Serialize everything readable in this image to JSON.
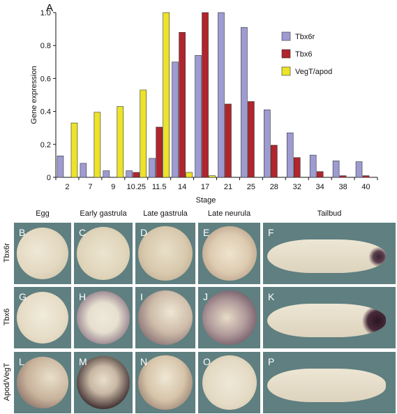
{
  "figure": {
    "panel_a_letter": "A",
    "columns": [
      "Egg",
      "Early gastrula",
      "Late gastrula",
      "Late neurula",
      "Tailbud"
    ],
    "rows": [
      {
        "label": "Tbx6r",
        "letters": [
          "B",
          "C",
          "D",
          "E",
          "F"
        ]
      },
      {
        "label": "Tbx6",
        "letters": [
          "G",
          "H",
          "I",
          "J",
          "K"
        ]
      },
      {
        "label": "Apod/VegT",
        "letters": [
          "L",
          "M",
          "N",
          "O",
          "P"
        ]
      }
    ],
    "colors": {
      "background": "#5f7f80",
      "embryo_light": "#e6ddc8"
    }
  },
  "chart_data": {
    "type": "bar",
    "xlabel": "Stage",
    "ylabel": "Gene expression",
    "ylim": [
      0,
      1.0
    ],
    "yticks": [
      "0",
      "0.2",
      "0.4",
      "0.6",
      "0.8",
      "1.0"
    ],
    "categories": [
      "2",
      "7",
      "9",
      "10.25",
      "11.5",
      "14",
      "17",
      "21",
      "25",
      "28",
      "32",
      "34",
      "38",
      "40"
    ],
    "legend_position": "top-right",
    "grid": false,
    "series": [
      {
        "name": "Tbx6r",
        "color": "#9d9bd1",
        "values": [
          0.13,
          0.085,
          0.04,
          0.04,
          0.115,
          0.7,
          0.74,
          1.0,
          0.91,
          0.41,
          0.27,
          0.135,
          0.1,
          0.095
        ]
      },
      {
        "name": "Tbx6",
        "color": "#b0252e",
        "values": [
          0,
          0,
          0,
          0.03,
          0.305,
          0.88,
          1.0,
          0.445,
          0.46,
          0.195,
          0.12,
          0.035,
          0.01,
          0.01
        ]
      },
      {
        "name": "VegT/apod",
        "color": "#ece32a",
        "values": [
          0.33,
          0.395,
          0.43,
          0.53,
          1.0,
          0.03,
          0.01,
          0,
          0,
          0,
          0,
          0,
          0,
          0
        ]
      }
    ]
  }
}
